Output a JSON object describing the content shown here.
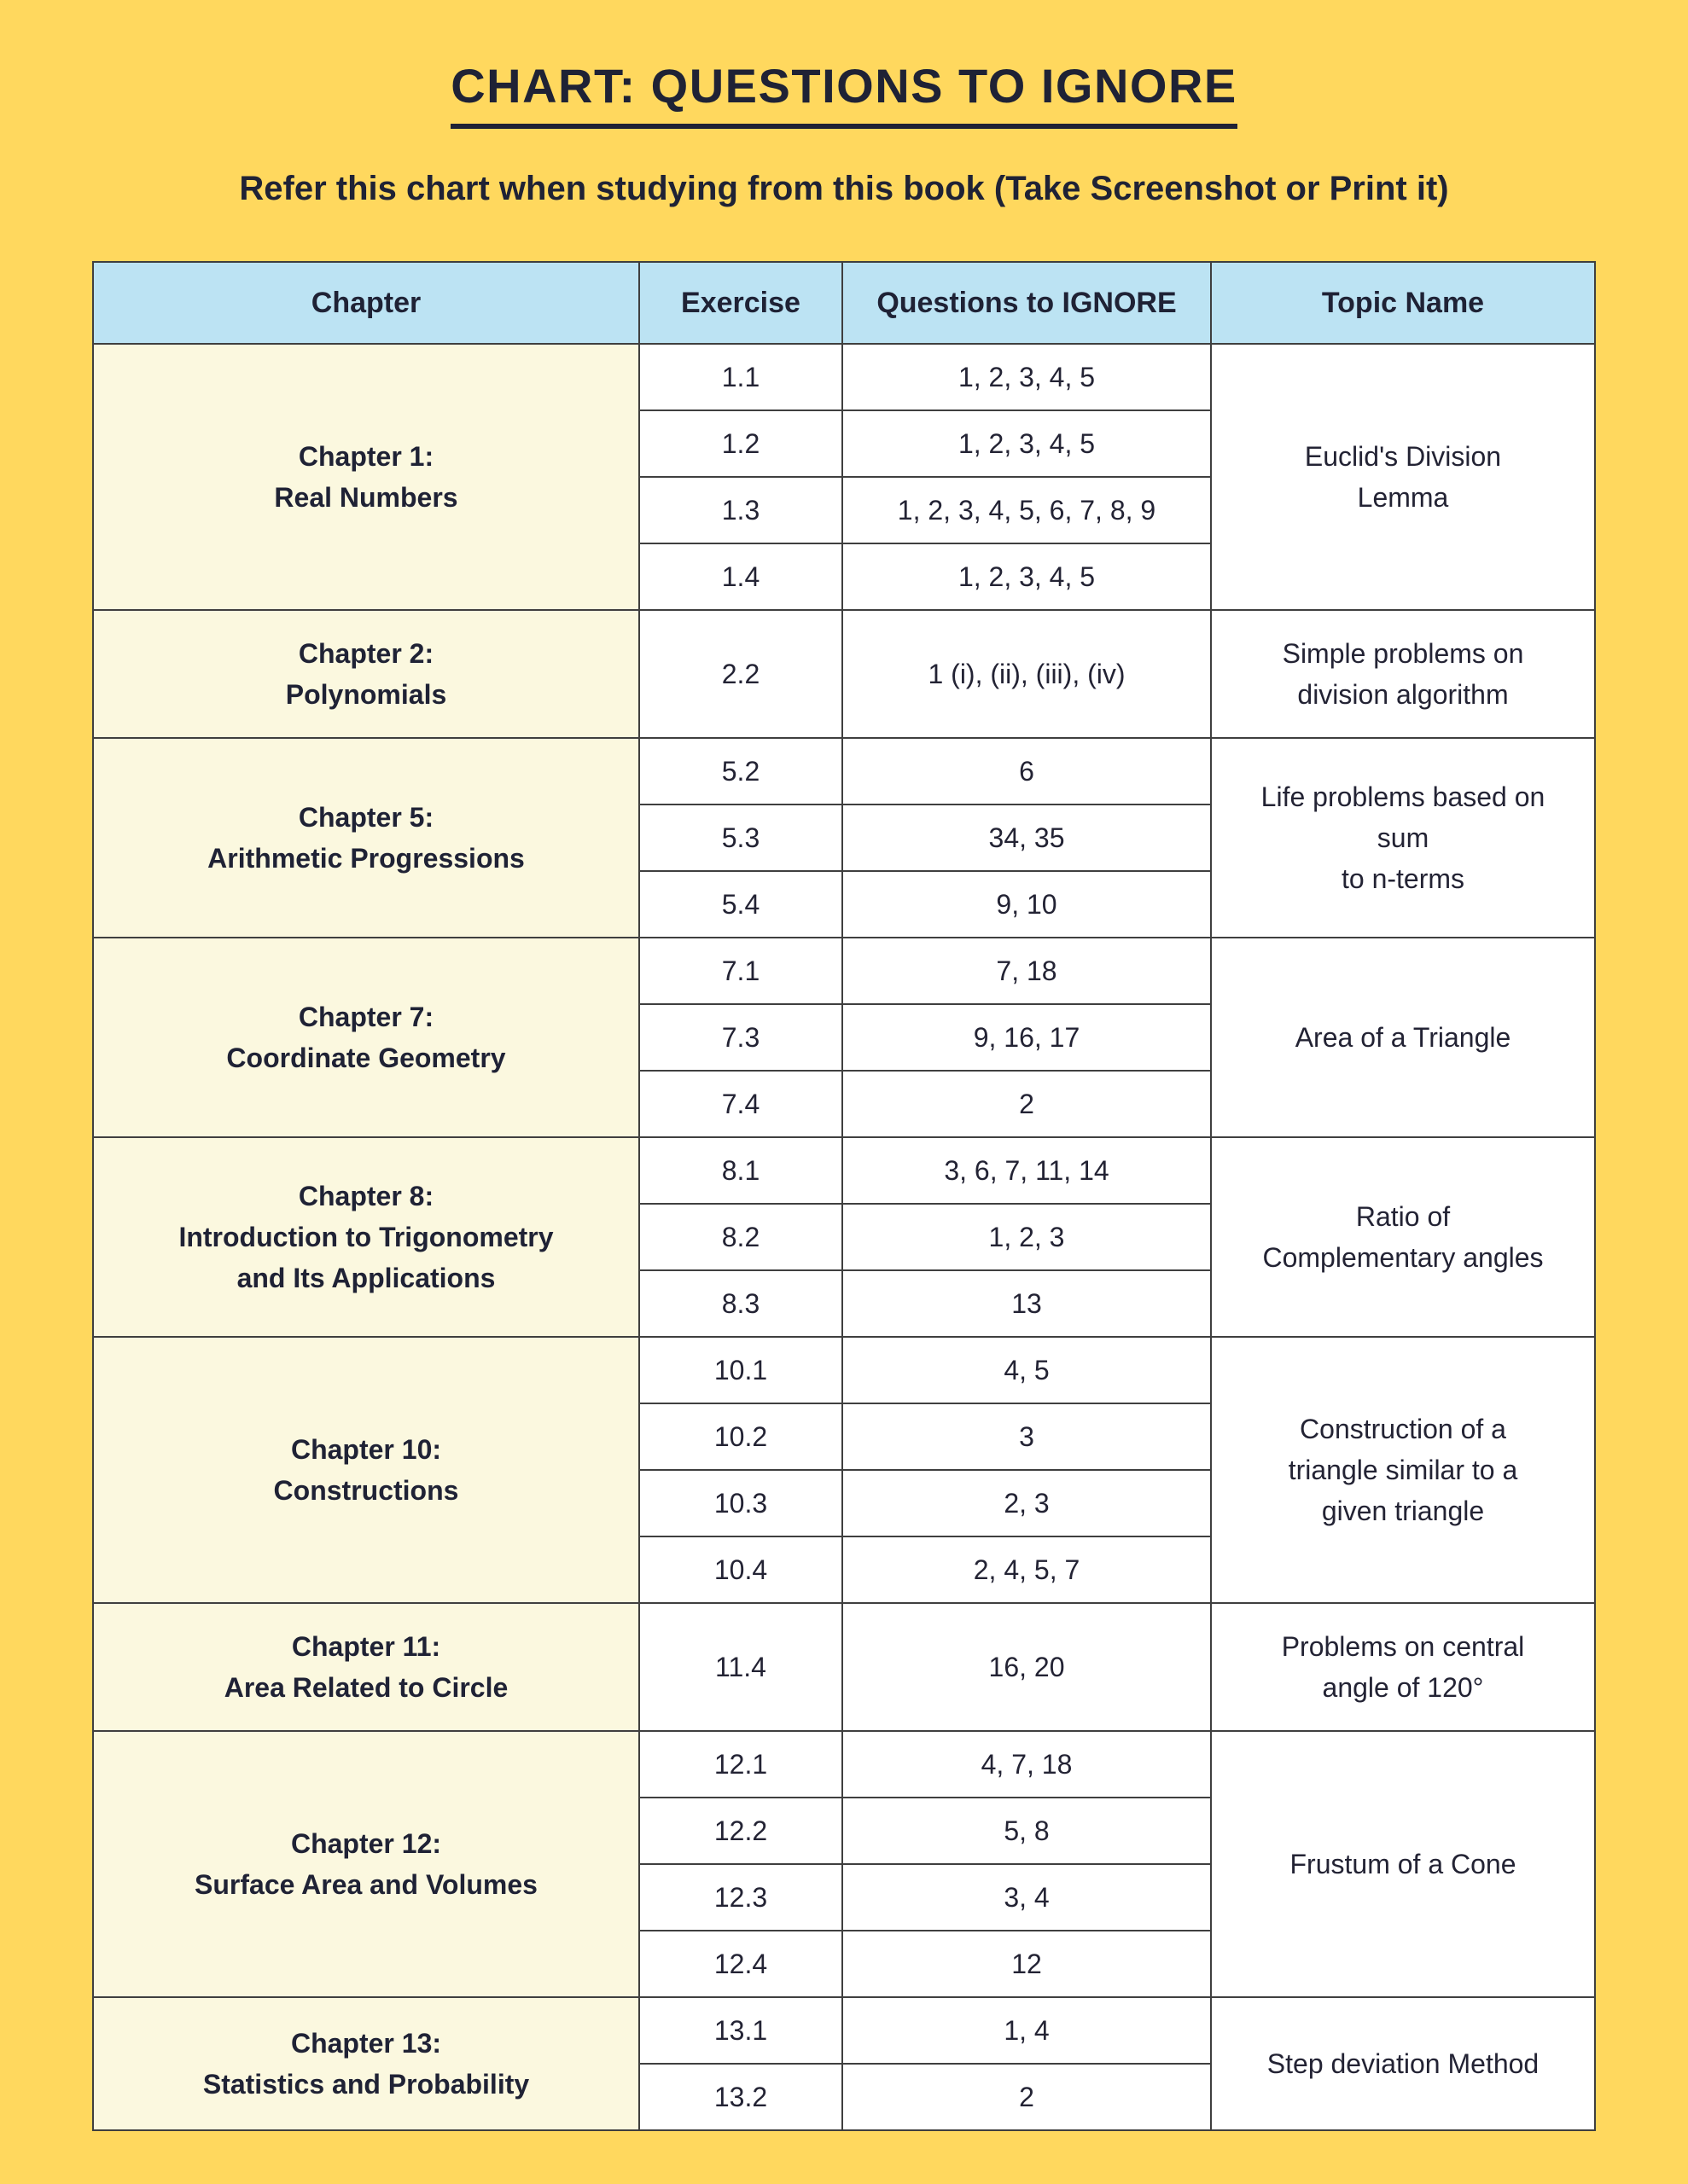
{
  "header": {
    "title": "CHART: QUESTIONS TO IGNORE",
    "subtitle": "Refer this chart when studying from this book (Take Screenshot or Print it)"
  },
  "colors": {
    "page_background": "#FFD85E",
    "table_header_background": "#BCE3F3",
    "chapter_cell_background": "#FBF8DF",
    "cell_background": "#FFFFFF",
    "border": "#3F3F3F",
    "text": "#1F2235"
  },
  "table": {
    "columns": [
      "Chapter",
      "Exercise",
      "Questions to IGNORE",
      "Topic Name"
    ],
    "groups": [
      {
        "chapter": "Chapter 1:\nReal Numbers",
        "topic": "Euclid's Division\nLemma",
        "rows": [
          {
            "exercise": "1.1",
            "questions": "1, 2, 3, 4, 5"
          },
          {
            "exercise": "1.2",
            "questions": "1, 2, 3, 4, 5"
          },
          {
            "exercise": "1.3",
            "questions": "1, 2, 3, 4, 5, 6, 7, 8, 9"
          },
          {
            "exercise": "1.4",
            "questions": "1, 2, 3, 4, 5"
          }
        ]
      },
      {
        "chapter": "Chapter 2:\nPolynomials",
        "topic": "Simple problems on\ndivision algorithm",
        "rows": [
          {
            "exercise": "2.2",
            "questions": "1 (i), (ii), (iii), (iv)"
          }
        ]
      },
      {
        "chapter": "Chapter 5:\nArithmetic Progressions",
        "topic": "Life problems based on\nsum\nto n-terms",
        "rows": [
          {
            "exercise": "5.2",
            "questions": "6"
          },
          {
            "exercise": "5.3",
            "questions": "34, 35"
          },
          {
            "exercise": "5.4",
            "questions": "9, 10"
          }
        ]
      },
      {
        "chapter": "Chapter 7:\nCoordinate Geometry",
        "topic": "Area of a Triangle",
        "rows": [
          {
            "exercise": "7.1",
            "questions": "7, 18"
          },
          {
            "exercise": "7.3",
            "questions": "9, 16, 17"
          },
          {
            "exercise": "7.4",
            "questions": "2"
          }
        ]
      },
      {
        "chapter": "Chapter 8:\nIntroduction to Trigonometry\nand Its Applications",
        "topic": "Ratio of\nComplementary angles",
        "rows": [
          {
            "exercise": "8.1",
            "questions": "3, 6, 7, 11, 14"
          },
          {
            "exercise": "8.2",
            "questions": "1, 2, 3"
          },
          {
            "exercise": "8.3",
            "questions": "13"
          }
        ]
      },
      {
        "chapter": "Chapter 10:\nConstructions",
        "topic": "Construction of a\ntriangle similar to a\ngiven triangle",
        "rows": [
          {
            "exercise": "10.1",
            "questions": "4, 5"
          },
          {
            "exercise": "10.2",
            "questions": "3"
          },
          {
            "exercise": "10.3",
            "questions": "2, 3"
          },
          {
            "exercise": "10.4",
            "questions": "2, 4, 5, 7"
          }
        ]
      },
      {
        "chapter": "Chapter 11:\nArea Related to Circle",
        "topic": "Problems on central\nangle of 120°",
        "rows": [
          {
            "exercise": "11.4",
            "questions": "16, 20"
          }
        ]
      },
      {
        "chapter": "Chapter 12:\nSurface Area and Volumes",
        "topic": "Frustum of a Cone",
        "rows": [
          {
            "exercise": "12.1",
            "questions": "4, 7, 18"
          },
          {
            "exercise": "12.2",
            "questions": "5, 8"
          },
          {
            "exercise": "12.3",
            "questions": "3, 4"
          },
          {
            "exercise": "12.4",
            "questions": "12"
          }
        ]
      },
      {
        "chapter": "Chapter 13:\nStatistics and Probability",
        "topic": "Step deviation Method",
        "rows": [
          {
            "exercise": "13.1",
            "questions": "1, 4"
          },
          {
            "exercise": "13.2",
            "questions": "2"
          }
        ]
      }
    ]
  }
}
